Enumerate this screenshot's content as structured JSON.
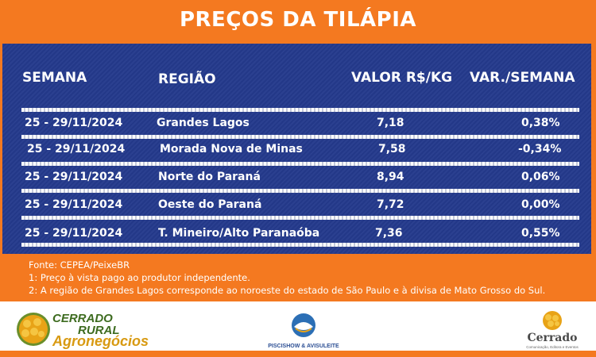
{
  "title": "PREÇOS DA TILÁPIA",
  "headers": {
    "week": "SEMANA",
    "region": "REGIÃO",
    "value": "VALOR R$/KG",
    "variation": "VAR./SEMANA"
  },
  "rows": [
    {
      "week": "25 - 29/11/2024",
      "region": "Grandes Lagos",
      "value": "7,18",
      "variation": "0,38%"
    },
    {
      "week": "25 - 29/11/2024",
      "region": "Morada Nova de Minas",
      "value": "7,58",
      "variation": "-0,34%"
    },
    {
      "week": "25 - 29/11/2024",
      "region": "Norte do Paraná",
      "value": "8,94",
      "variation": "0,06%"
    },
    {
      "week": "25 - 29/11/2024",
      "region": "Oeste do Paraná",
      "value": "7,72",
      "variation": "0,00%"
    },
    {
      "week": "25 - 29/11/2024",
      "region": "T. Mineiro/Alto Paranaóba",
      "value": "7,36",
      "variation": "0,55%"
    }
  ],
  "notes": [
    "Fonte: CEPEA/PeixeBR",
    "1: Preço à vista pago ao produtor independente.",
    "2: A região de Grandes Lagos corresponde ao noroeste do estado de São Paulo e à divisa de Mato Grosso do Sul."
  ],
  "logos": {
    "cerrado_rural_line1": "CERRADO",
    "cerrado_rural_line2": "RURAL",
    "cerrado_rural_line3": "Agronegócios",
    "piscishow": "PISCISHOW & AVISULEITE",
    "cerrado": "Cerrado",
    "cerrado_sub": "Comunicação, Editora e Eventos"
  },
  "colors": {
    "orange": "#f47920",
    "navy": "#243a8c",
    "gold": "#e8a317"
  }
}
